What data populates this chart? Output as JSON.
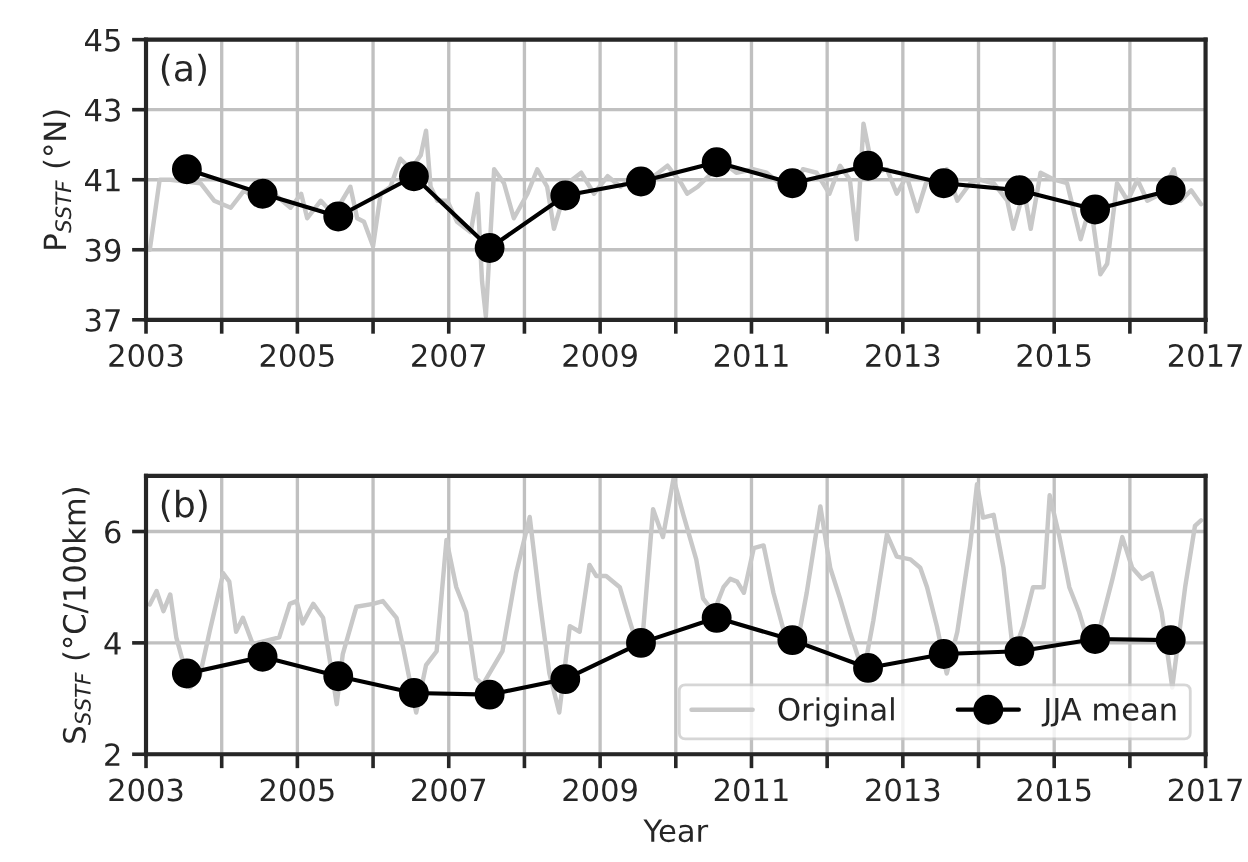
{
  "chart_data": [
    {
      "type": "line",
      "ylabel": "P$_{SSTF}$ (°N)",
      "annotations": [
        "(a)"
      ],
      "grid": true,
      "legend": false,
      "xlim": [
        2003,
        2017
      ],
      "xticks": [
        2003,
        {
          "value": 2004,
          "label": null
        },
        2005,
        {
          "value": 2006,
          "label": null
        },
        2007,
        {
          "value": 2008,
          "label": null
        },
        2009,
        {
          "value": 2010,
          "label": null
        },
        2011,
        {
          "value": 2012,
          "label": null
        },
        2013,
        {
          "value": 2014,
          "label": null
        },
        2015,
        {
          "value": 2016,
          "label": null
        },
        2017
      ],
      "ylim": [
        37,
        45
      ],
      "yticks": [
        37,
        39,
        41,
        43,
        45
      ],
      "series": [
        {
          "color": "#c8c8c8",
          "marker": "none",
          "x": [
            2003.05,
            2003.18,
            2003.32,
            2003.54,
            2003.72,
            2003.9,
            2004.12,
            2004.3,
            2004.47,
            2004.69,
            2004.91,
            2005.05,
            2005.13,
            2005.31,
            2005.48,
            2005.7,
            2005.79,
            2005.88,
            2006.0,
            2006.1,
            2006.23,
            2006.36,
            2006.5,
            2006.63,
            2006.7,
            2006.76,
            2006.85,
            2006.98,
            2007.11,
            2007.29,
            2007.38,
            2007.44,
            2007.49,
            2007.6,
            2007.73,
            2007.86,
            2008.04,
            2008.17,
            2008.3,
            2008.39,
            2008.57,
            2008.75,
            2008.92,
            2009.1,
            2009.27,
            2009.45,
            2009.71,
            2009.89,
            2010.07,
            2010.15,
            2010.29,
            2010.62,
            2010.8,
            2011.02,
            2011.2,
            2011.37,
            2011.55,
            2011.68,
            2011.86,
            2012.03,
            2012.17,
            2012.3,
            2012.39,
            2012.48,
            2012.61,
            2012.79,
            2012.92,
            2013.05,
            2013.19,
            2013.32,
            2013.45,
            2013.58,
            2013.72,
            2013.89,
            2014.02,
            2014.2,
            2014.38,
            2014.46,
            2014.6,
            2014.69,
            2014.82,
            2015.0,
            2015.17,
            2015.35,
            2015.48,
            2015.61,
            2015.7,
            2015.83,
            2015.97,
            2016.1,
            2016.23,
            2016.41,
            2016.58,
            2016.67,
            2016.81,
            2016.94
          ],
          "values": [
            39.0,
            41.0,
            41.0,
            null,
            40.9,
            40.4,
            40.2,
            40.7,
            40.4,
            40.6,
            40.2,
            40.6,
            39.9,
            40.4,
            40.0,
            40.8,
            39.9,
            39.8,
            39.1,
            40.6,
            40.8,
            41.6,
            41.3,
            41.7,
            42.4,
            40.8,
            40.4,
            40.4,
            39.8,
            39.5,
            40.6,
            38.1,
            37.1,
            41.3,
            40.9,
            39.9,
            40.6,
            41.3,
            40.8,
            39.6,
            40.9,
            41.2,
            40.6,
            41.1,
            40.8,
            41.1,
            41.1,
            41.4,
            40.9,
            40.6,
            40.8,
            41.5,
            41.2,
            41.3,
            41.2,
            40.9,
            40.6,
            41.3,
            41.2,
            40.6,
            41.4,
            41.0,
            39.3,
            42.6,
            41.2,
            41.3,
            40.6,
            41.1,
            40.1,
            41.0,
            40.8,
            41.3,
            40.4,
            40.9,
            41.0,
            40.9,
            40.4,
            39.6,
            40.7,
            39.6,
            41.2,
            41.0,
            40.9,
            39.3,
            40.3,
            38.3,
            38.6,
            40.9,
            40.4,
            41.0,
            40.4,
            40.6,
            41.3,
            40.4,
            40.7,
            40.3
          ]
        },
        {
          "color": "#000000",
          "marker": "circle",
          "x": [
            2003.54,
            2004.54,
            2005.54,
            2006.54,
            2007.54,
            2008.54,
            2009.54,
            2010.54,
            2011.54,
            2012.54,
            2013.54,
            2014.54,
            2015.54,
            2016.54
          ],
          "values": [
            41.3,
            40.6,
            39.95,
            41.1,
            39.05,
            40.55,
            40.95,
            41.5,
            40.9,
            41.4,
            40.9,
            40.7,
            40.15,
            40.7
          ]
        }
      ]
    },
    {
      "type": "line",
      "ylabel": "S$_{SSTF}$ (°C/100km)",
      "xlabel": "Year",
      "annotations": [
        "(b)"
      ],
      "grid": true,
      "legend": "bottom right",
      "xlim": [
        2003,
        2017
      ],
      "xticks": [
        2003,
        {
          "value": 2004,
          "label": null
        },
        2005,
        {
          "value": 2006,
          "label": null
        },
        2007,
        {
          "value": 2008,
          "label": null
        },
        2009,
        {
          "value": 2010,
          "label": null
        },
        2011,
        {
          "value": 2012,
          "label": null
        },
        2013,
        {
          "value": 2014,
          "label": null
        },
        2015,
        {
          "value": 2016,
          "label": null
        },
        2017
      ],
      "ylim": [
        2,
        7
      ],
      "yticks": [
        2,
        4,
        6
      ],
      "series": [
        {
          "name": "Original",
          "color": "#c8c8c8",
          "marker": "none",
          "x": [
            2003.05,
            2003.14,
            2003.23,
            2003.32,
            2003.4,
            2003.58,
            2003.71,
            2003.84,
            2004.02,
            2004.1,
            2004.19,
            2004.28,
            2004.41,
            2004.59,
            2004.76,
            2004.9,
            2004.99,
            2005.07,
            2005.21,
            2005.34,
            2005.52,
            2005.6,
            2005.78,
            2006.0,
            2006.13,
            2006.31,
            2006.4,
            2006.57,
            2006.7,
            2006.84,
            2006.97,
            2007.1,
            2007.23,
            2007.36,
            2007.45,
            2007.58,
            2007.71,
            2007.89,
            2008.07,
            2008.2,
            2008.33,
            2008.46,
            2008.6,
            2008.73,
            2008.86,
            2008.95,
            2009.08,
            2009.26,
            2009.39,
            2009.48,
            2009.57,
            2009.7,
            2009.83,
            2009.97,
            2010.1,
            2010.27,
            2010.36,
            2010.5,
            2010.63,
            2010.72,
            2010.81,
            2010.9,
            2011.03,
            2011.16,
            2011.29,
            2011.43,
            2011.6,
            2011.73,
            2011.91,
            2012.04,
            2012.17,
            2012.3,
            2012.48,
            2012.61,
            2012.79,
            2012.92,
            2013.1,
            2013.23,
            2013.32,
            2013.45,
            2013.58,
            2013.72,
            2013.89,
            2013.98,
            2014.06,
            2014.2,
            2014.33,
            2014.46,
            2014.59,
            2014.72,
            2014.86,
            2014.94,
            2015.07,
            2015.2,
            2015.33,
            2015.46,
            2015.59,
            2015.77,
            2015.9,
            2016.03,
            2016.16,
            2016.29,
            2016.42,
            2016.56,
            2016.73,
            2016.86,
            2016.94
          ],
          "values": [
            4.69,
            4.93,
            4.57,
            4.87,
            4.1,
            3.2,
            3.4,
            4.2,
            5.25,
            5.1,
            4.2,
            4.45,
            3.98,
            null,
            4.1,
            4.7,
            4.75,
            4.35,
            4.7,
            4.45,
            2.9,
            3.8,
            4.65,
            4.7,
            4.75,
            4.45,
            3.9,
            2.75,
            3.6,
            3.85,
            5.85,
            5.0,
            4.55,
            3.36,
            3.25,
            null,
            3.85,
            5.25,
            6.26,
            4.77,
            3.45,
            2.75,
            4.3,
            4.2,
            5.4,
            5.2,
            5.2,
            5.0,
            4.4,
            4.0,
            4.25,
            6.4,
            5.9,
            6.95,
            6.3,
            5.5,
            4.8,
            4.55,
            5.0,
            5.15,
            5.1,
            4.9,
            5.7,
            5.75,
            4.9,
            4.2,
            3.95,
            4.9,
            6.45,
            5.35,
            4.8,
            4.2,
            3.45,
            4.4,
            5.95,
            5.55,
            5.5,
            5.35,
            5.0,
            4.3,
            3.45,
            4.2,
            5.75,
            6.85,
            6.25,
            6.3,
            5.35,
            3.8,
            4.3,
            5.0,
            5.0,
            6.65,
            5.9,
            5.0,
            4.55,
            3.95,
            4.2,
            5.15,
            5.9,
            5.35,
            5.15,
            5.25,
            4.55,
            3.2,
            5.0,
            6.1,
            6.2
          ]
        },
        {
          "name": "JJA mean",
          "color": "#000000",
          "marker": "circle",
          "x": [
            2003.54,
            2004.54,
            2005.54,
            2006.54,
            2007.54,
            2008.54,
            2009.54,
            2010.54,
            2011.54,
            2012.54,
            2013.54,
            2014.54,
            2015.54,
            2016.54
          ],
          "values": [
            3.45,
            3.75,
            3.4,
            3.1,
            3.07,
            3.35,
            4.0,
            4.45,
            4.05,
            3.55,
            3.8,
            3.85,
            4.07,
            4.05
          ]
        }
      ]
    }
  ]
}
